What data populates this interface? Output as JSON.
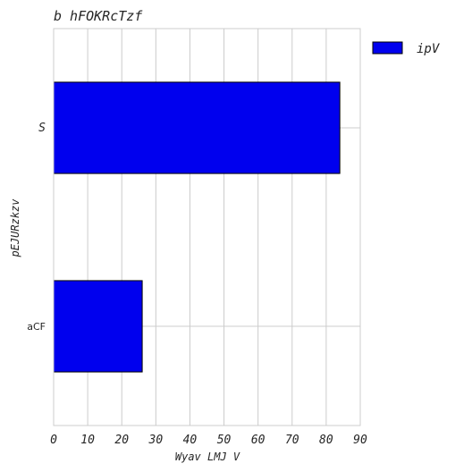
{
  "chart_data": {
    "type": "bar",
    "orientation": "horizontal",
    "title": "b hFOKRcTzf",
    "xlabel": "Wyav LMJ V",
    "ylabel": "pEJURzkzv",
    "categories": [
      "S",
      "aCF"
    ],
    "series": [
      {
        "name": "ipV",
        "values": [
          84,
          26
        ],
        "color": "#0000ee"
      }
    ],
    "xlim": [
      0,
      90
    ],
    "xticks": [
      0,
      10,
      20,
      30,
      40,
      50,
      60,
      70,
      80,
      90
    ],
    "grid": true,
    "legend": "top-right-outside"
  }
}
